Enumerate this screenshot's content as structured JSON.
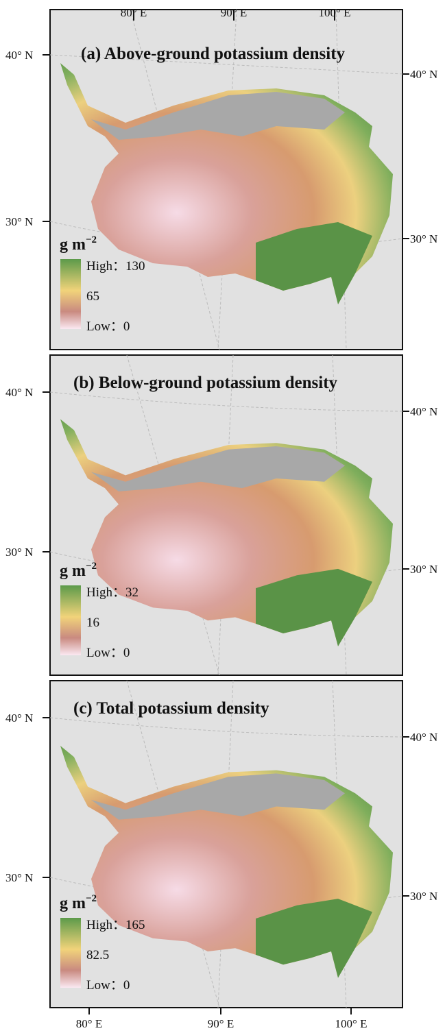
{
  "top_axis": [
    "80° E",
    "90° E",
    "100° E"
  ],
  "bottom_axis": [
    "80° E",
    "90° E",
    "100° E"
  ],
  "panels": [
    {
      "title": "(a) Above-ground potassium density",
      "unit": {
        "base": "g m",
        "exponent": "−2"
      },
      "legend": {
        "high": "High：130",
        "mid": "65",
        "low": "Low：0"
      },
      "left_axis": [
        "40° N",
        "30° N"
      ],
      "right_axis": [
        "40° N",
        "30° N"
      ]
    },
    {
      "title": "(b) Below-ground potassium density",
      "unit": {
        "base": "g m",
        "exponent": "−2"
      },
      "legend": {
        "high": "High：32",
        "mid": "16",
        "low": "Low：0"
      },
      "left_axis": [
        "40° N",
        "30° N"
      ],
      "right_axis": [
        "40° N",
        "30° N"
      ]
    },
    {
      "title": "(c) Total potassium density",
      "unit": {
        "base": "g m",
        "exponent": "−2"
      },
      "legend": {
        "high": "High：165",
        "mid": "82.5",
        "low": "Low：0"
      },
      "left_axis": [
        "40° N",
        "30° N"
      ],
      "right_axis": [
        "40° N",
        "30° N"
      ]
    }
  ]
}
